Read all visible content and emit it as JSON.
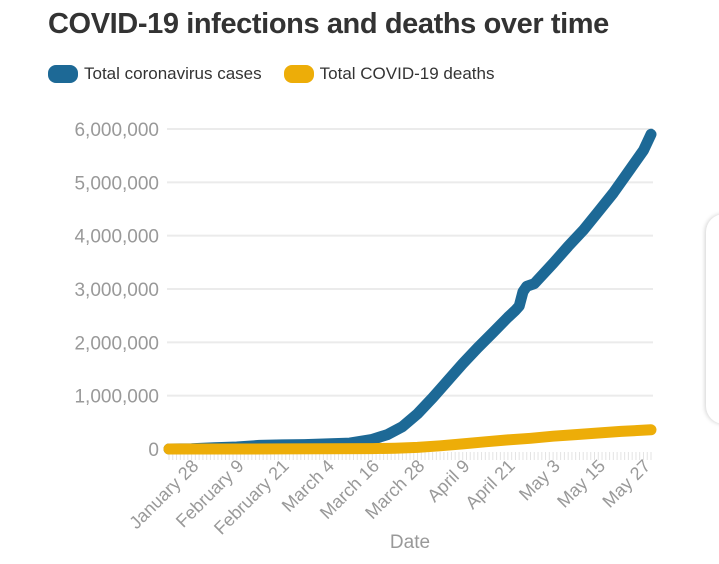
{
  "chart_data": {
    "type": "line",
    "title": "COVID-19 infections and deaths over time",
    "xlabel": "Date",
    "ylabel": "",
    "ylim": [
      0,
      6000000
    ],
    "yticks": [
      0,
      1000000,
      2000000,
      3000000,
      4000000,
      5000000,
      6000000
    ],
    "ytick_labels": [
      "0",
      "1,000,000",
      "2,000,000",
      "3,000,000",
      "4,000,000",
      "5,000,000",
      "6,000,000"
    ],
    "xlim_days": [
      0,
      126
    ],
    "x_start_date": "January 22",
    "xtick_days": [
      6,
      18,
      30,
      42,
      54,
      66,
      78,
      90,
      102,
      114,
      126
    ],
    "xtick_labels": [
      "January 28",
      "February 9",
      "February 21",
      "March 4",
      "March 16",
      "March 28",
      "April 9",
      "April 21",
      "May 3",
      "May 15",
      "May 27"
    ],
    "grid": true,
    "legend_position": "top-left",
    "series": [
      {
        "name": "Total coronavirus cases",
        "color": "#1d6996",
        "points": [
          [
            0,
            600
          ],
          [
            6,
            5500
          ],
          [
            12,
            24000
          ],
          [
            18,
            37000
          ],
          [
            24,
            67000
          ],
          [
            30,
            76000
          ],
          [
            36,
            83000
          ],
          [
            42,
            95000
          ],
          [
            48,
            110000
          ],
          [
            54,
            180000
          ],
          [
            58,
            270000
          ],
          [
            62,
            420000
          ],
          [
            66,
            660000
          ],
          [
            70,
            960000
          ],
          [
            74,
            1280000
          ],
          [
            78,
            1600000
          ],
          [
            82,
            1900000
          ],
          [
            86,
            2180000
          ],
          [
            90,
            2470000
          ],
          [
            92,
            2600000
          ],
          [
            93,
            2680000
          ],
          [
            94,
            2950000
          ],
          [
            95,
            3050000
          ],
          [
            97,
            3100000
          ],
          [
            102,
            3480000
          ],
          [
            106,
            3800000
          ],
          [
            110,
            4100000
          ],
          [
            114,
            4450000
          ],
          [
            118,
            4800000
          ],
          [
            122,
            5200000
          ],
          [
            126,
            5600000
          ],
          [
            128,
            5900000
          ]
        ]
      },
      {
        "name": "Total COVID-19 deaths",
        "color": "#edad08",
        "points": [
          [
            0,
            17
          ],
          [
            18,
            800
          ],
          [
            30,
            2200
          ],
          [
            42,
            3200
          ],
          [
            54,
            7000
          ],
          [
            60,
            15000
          ],
          [
            66,
            30000
          ],
          [
            72,
            60000
          ],
          [
            78,
            95000
          ],
          [
            84,
            135000
          ],
          [
            90,
            170000
          ],
          [
            96,
            200000
          ],
          [
            102,
            240000
          ],
          [
            108,
            270000
          ],
          [
            114,
            300000
          ],
          [
            120,
            330000
          ],
          [
            128,
            360000
          ]
        ]
      }
    ]
  }
}
